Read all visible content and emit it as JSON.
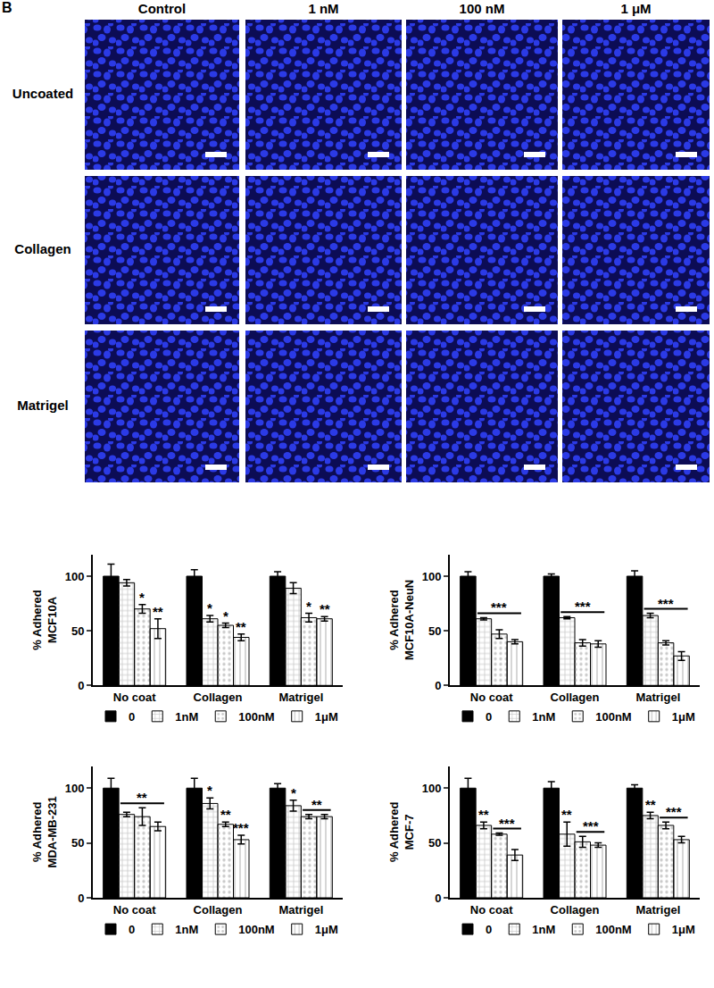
{
  "image_panel": {
    "label": "B",
    "columns": [
      "Control",
      "1 nM",
      "100 nM",
      "1 μM"
    ],
    "rows": [
      "Uncoated",
      "Collagen",
      "Matrigel"
    ]
  },
  "chart_data": [
    {
      "type": "bar",
      "y_label": "% Adhered\nMCF10A",
      "categories": [
        "No coat",
        "Collagen",
        "Matrigel"
      ],
      "series": [
        {
          "name": "0",
          "color": "#000000",
          "values": [
            100,
            100,
            100
          ],
          "errors": [
            11,
            6,
            4
          ]
        },
        {
          "name": "1nM",
          "color": "#000000",
          "values": [
            94,
            61,
            89
          ],
          "errors": [
            3,
            3,
            5
          ]
        },
        {
          "name": "100nM",
          "color": "#000000",
          "values": [
            70,
            55,
            62
          ],
          "errors": [
            4,
            2,
            4
          ]
        },
        {
          "name": "1μM",
          "color": "#000000",
          "values": [
            52,
            44,
            61
          ],
          "errors": [
            9,
            3,
            2
          ]
        }
      ],
      "ylim": [
        0,
        120
      ],
      "yticks": [
        0,
        50,
        100
      ],
      "grid": false,
      "legend": "bottom",
      "significance": [
        {
          "category": "No coat",
          "series": "100nM",
          "text": "*"
        },
        {
          "category": "No coat",
          "series": "1μM",
          "text": "**"
        },
        {
          "category": "Collagen",
          "series": "1nM",
          "text": "*"
        },
        {
          "category": "Collagen",
          "series": "100nM",
          "text": "*"
        },
        {
          "category": "Collagen",
          "series": "1μM",
          "text": "**"
        },
        {
          "category": "Matrigel",
          "series": "100nM",
          "text": "*"
        },
        {
          "category": "Matrigel",
          "series": "1μM",
          "text": "**"
        }
      ]
    },
    {
      "type": "bar",
      "y_label": "% Adhered\nMCF10A-NeuN",
      "categories": [
        "No coat",
        "Collagen",
        "Matrigel"
      ],
      "series": [
        {
          "name": "0",
          "color": "#000000",
          "values": [
            100,
            100,
            100
          ],
          "errors": [
            4,
            2,
            5
          ]
        },
        {
          "name": "1nM",
          "color": "#000000",
          "values": [
            61,
            62,
            64
          ],
          "errors": [
            1,
            1,
            2
          ]
        },
        {
          "name": "100nM",
          "color": "#000000",
          "values": [
            47,
            39,
            39
          ],
          "errors": [
            4,
            3,
            2
          ]
        },
        {
          "name": "1μM",
          "color": "#000000",
          "values": [
            40,
            38,
            27
          ],
          "errors": [
            2,
            3,
            4
          ]
        }
      ],
      "ylim": [
        0,
        120
      ],
      "yticks": [
        0,
        50,
        100
      ],
      "grid": false,
      "legend": "bottom",
      "significance": [
        {
          "category": "No coat",
          "from": "1nM",
          "to": "1μM",
          "text": "***"
        },
        {
          "category": "Collagen",
          "from": "1nM",
          "to": "1μM",
          "text": "***"
        },
        {
          "category": "Matrigel",
          "from": "1nM",
          "to": "1μM",
          "text": "***"
        }
      ]
    },
    {
      "type": "bar",
      "y_label": "% Adhered\nMDA-MB-231",
      "categories": [
        "No coat",
        "Collagen",
        "Matrigel"
      ],
      "series": [
        {
          "name": "0",
          "color": "#000000",
          "values": [
            100,
            100,
            100
          ],
          "errors": [
            9,
            9,
            4
          ]
        },
        {
          "name": "1nM",
          "color": "#000000",
          "values": [
            76,
            86,
            84
          ],
          "errors": [
            2,
            5,
            5
          ]
        },
        {
          "name": "100nM",
          "color": "#000000",
          "values": [
            74,
            67,
            74
          ],
          "errors": [
            8,
            2,
            2
          ]
        },
        {
          "name": "1μM",
          "color": "#000000",
          "values": [
            65,
            53,
            74
          ],
          "errors": [
            4,
            4,
            2
          ]
        }
      ],
      "ylim": [
        0,
        120
      ],
      "yticks": [
        0,
        50,
        100
      ],
      "grid": false,
      "legend": "bottom",
      "significance": [
        {
          "category": "No coat",
          "from": "1nM",
          "to": "1μM",
          "text": "**"
        },
        {
          "category": "Collagen",
          "series": "1nM",
          "text": "*"
        },
        {
          "category": "Collagen",
          "series": "100nM",
          "text": "**"
        },
        {
          "category": "Collagen",
          "series": "1μM",
          "text": "***"
        },
        {
          "category": "Matrigel",
          "series": "1nM",
          "text": "*"
        },
        {
          "category": "Matrigel",
          "from": "100nM",
          "to": "1μM",
          "text": "**"
        }
      ]
    },
    {
      "type": "bar",
      "y_label": "% Adhered\nMCF-7",
      "categories": [
        "No coat",
        "Collagen",
        "Matrigel"
      ],
      "series": [
        {
          "name": "0",
          "color": "#000000",
          "values": [
            100,
            100,
            100
          ],
          "errors": [
            9,
            6,
            3
          ]
        },
        {
          "name": "1nM",
          "color": "#000000",
          "values": [
            66,
            58,
            75
          ],
          "errors": [
            3,
            11,
            3
          ]
        },
        {
          "name": "100nM",
          "color": "#000000",
          "values": [
            58,
            51,
            66
          ],
          "errors": [
            1,
            5,
            3
          ]
        },
        {
          "name": "1μM",
          "color": "#000000",
          "values": [
            39,
            48,
            53
          ],
          "errors": [
            5,
            2,
            3
          ]
        }
      ],
      "ylim": [
        0,
        120
      ],
      "yticks": [
        0,
        50,
        100
      ],
      "grid": false,
      "legend": "bottom",
      "significance": [
        {
          "category": "No coat",
          "series": "1nM",
          "text": "**"
        },
        {
          "category": "No coat",
          "from": "100nM",
          "to": "1μM",
          "text": "***"
        },
        {
          "category": "Collagen",
          "series": "1nM",
          "text": "**"
        },
        {
          "category": "Collagen",
          "from": "100nM",
          "to": "1μM",
          "text": "***"
        },
        {
          "category": "Matrigel",
          "series": "1nM",
          "text": "**"
        },
        {
          "category": "Matrigel",
          "from": "100nM",
          "to": "1μM",
          "text": "***"
        }
      ]
    }
  ]
}
